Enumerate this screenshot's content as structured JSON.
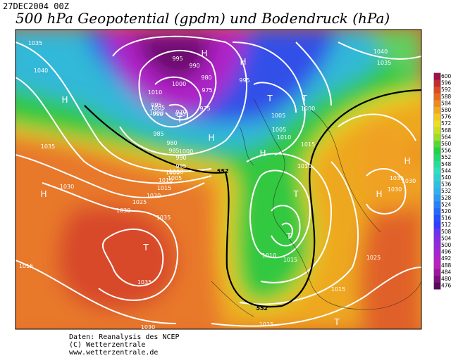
{
  "header": {
    "date": "27DEC2004 00Z",
    "title": "500 hPa Geopotential (gpdm) und Bodendruck (hPa)"
  },
  "colorbar": {
    "labels": [
      600,
      596,
      592,
      588,
      584,
      580,
      576,
      572,
      568,
      564,
      560,
      556,
      552,
      548,
      544,
      540,
      536,
      532,
      528,
      524,
      520,
      516,
      512,
      508,
      504,
      500,
      496,
      492,
      488,
      484,
      480,
      476
    ]
  },
  "map": {
    "isobar_labels": [
      "1035",
      "1040",
      "1035",
      "1030",
      "1030",
      "1035",
      "1035",
      "1030",
      "1015",
      "1025",
      "1020",
      "1015",
      "1010",
      "1005",
      "1000",
      "995",
      "990",
      "985",
      "980",
      "985",
      "990",
      "995",
      "1000",
      "1005",
      "1010",
      "1000",
      "995",
      "990",
      "980",
      "975",
      "970",
      "975",
      "990",
      "1000",
      "1000",
      "1005",
      "1010",
      "1015",
      "1010",
      "1000",
      "995",
      "1005",
      "1010",
      "1015",
      "1015",
      "1015",
      "1025",
      "1030",
      "1040",
      "1035",
      "1035",
      "1030"
    ],
    "pressure_centers": [
      "H",
      "H",
      "H",
      "H",
      "T",
      "T",
      "T",
      "H",
      "T",
      "T",
      "H",
      "H",
      "T",
      "H",
      "T"
    ],
    "contour_labels": [
      "552",
      "552"
    ]
  },
  "footer": {
    "lines": [
      "Daten: Reanalysis des NCEP",
      "(C) Wetterzentrale",
      "www.wetterzentrale.de"
    ]
  }
}
